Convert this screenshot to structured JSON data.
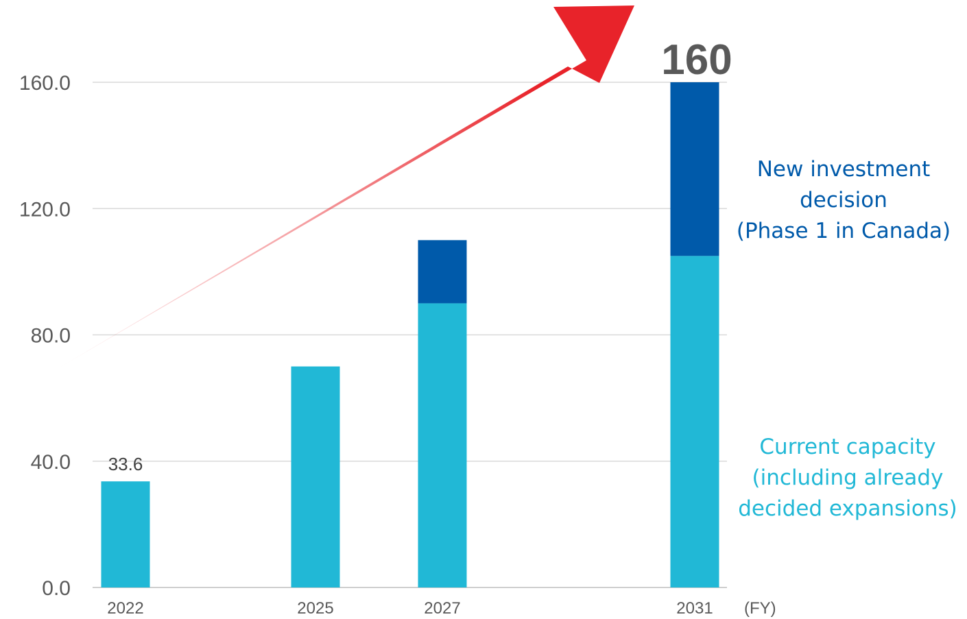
{
  "chart_data": {
    "type": "bar",
    "stacked": true,
    "categories": [
      "2022",
      "2025",
      "2027",
      "2031"
    ],
    "x_unit": "(FY)",
    "ylim": [
      0,
      160
    ],
    "yticks": [
      "0.0",
      "40.0",
      "80.0",
      "120.0",
      "160.0"
    ],
    "grid": true,
    "series": [
      {
        "key": "current",
        "values": [
          33.6,
          70,
          90,
          105
        ],
        "color": "#21b8d6"
      },
      {
        "key": "new",
        "values": [
          0,
          0,
          20,
          55
        ],
        "color": "#005aaa"
      }
    ],
    "data_labels": {
      "first_bar": "33.6",
      "total_last": "160"
    },
    "annotations": {
      "new_investment": {
        "lines": [
          "New investment",
          "decision",
          "(Phase 1 in Canada)"
        ],
        "color": "#005aaa"
      },
      "current_capacity": {
        "lines": [
          "Current capacity",
          "(including already",
          "decided expansions)"
        ],
        "color": "#21b8d6"
      }
    },
    "arrow_color": "#e8232a"
  }
}
